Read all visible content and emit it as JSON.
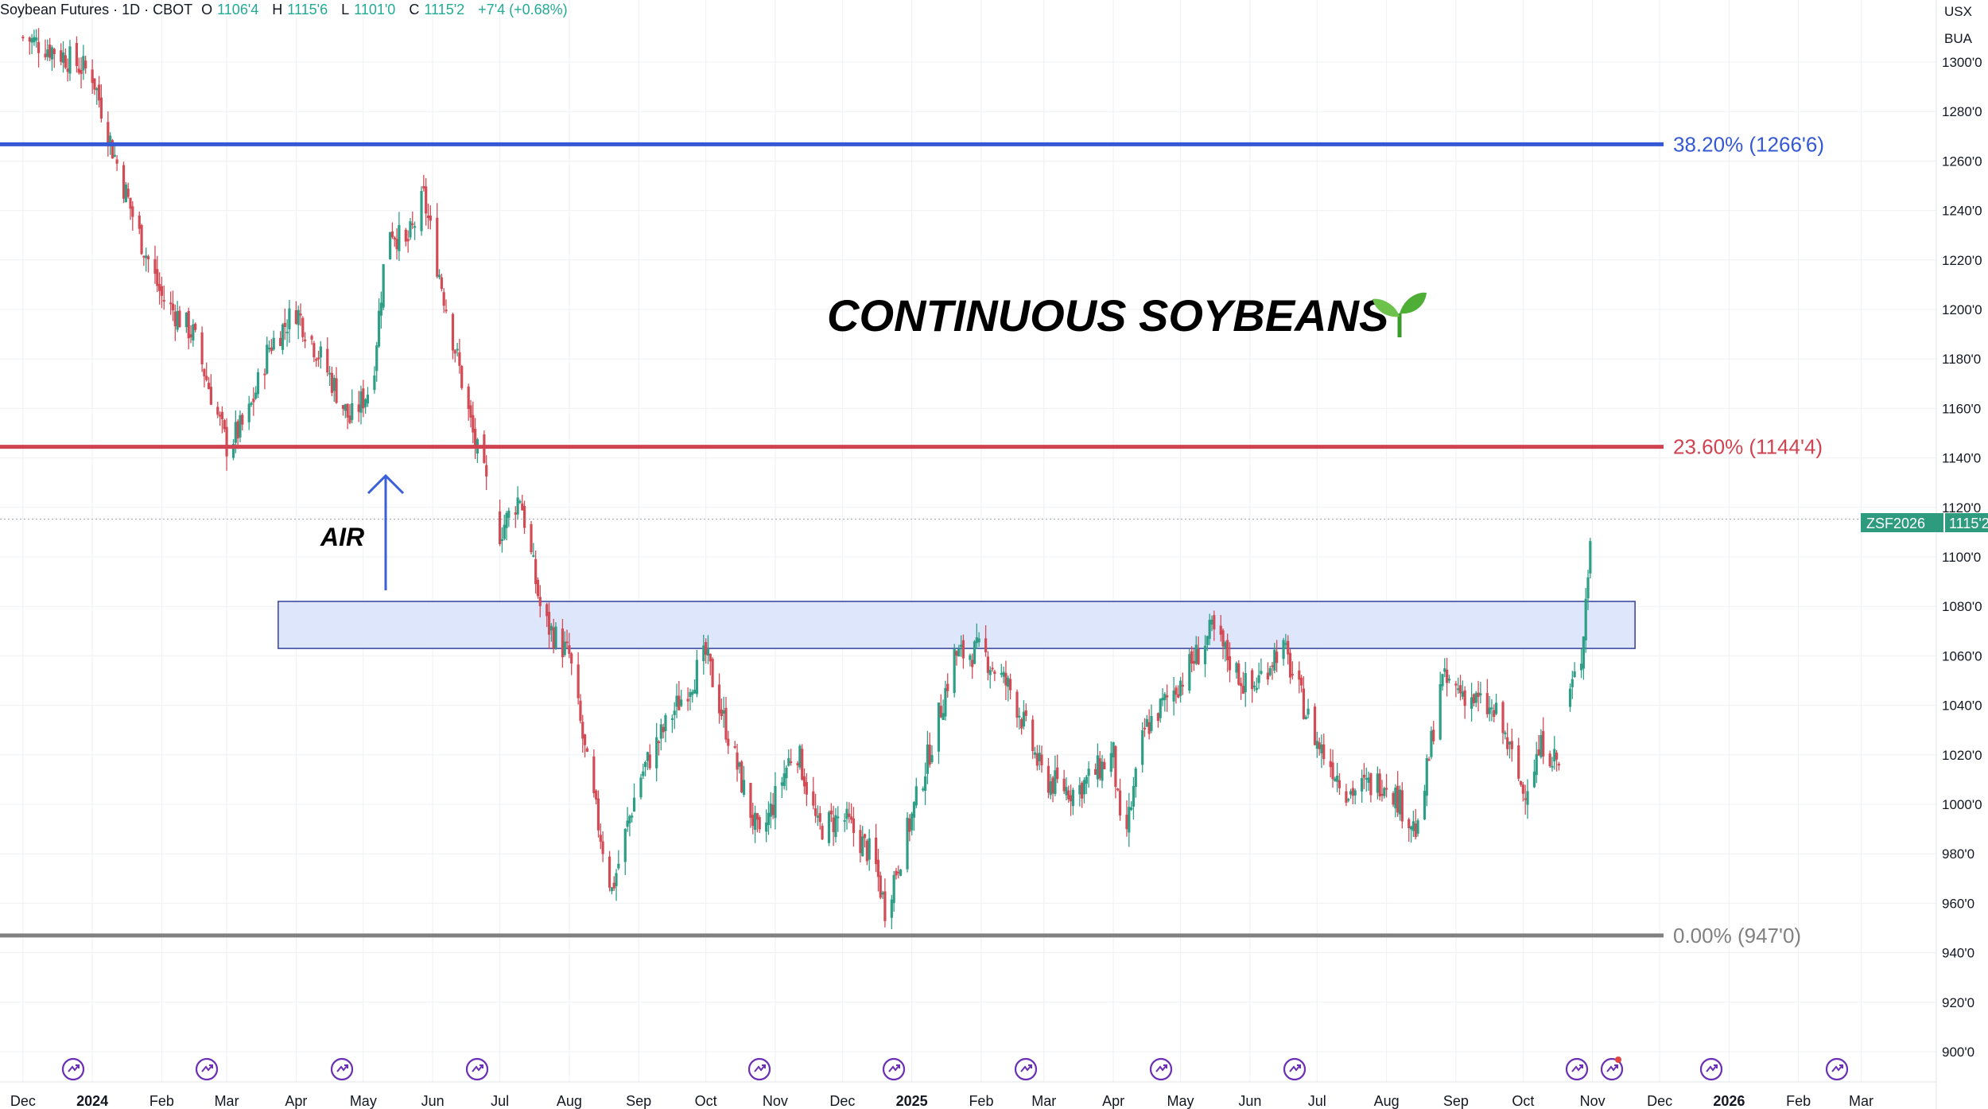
{
  "header": {
    "symbol": "Soybean Futures · 1D · CBOT",
    "open_label": "O",
    "open": "1106'4",
    "high_label": "H",
    "high": "1115'6",
    "low_label": "L",
    "low": "1101'0",
    "close_label": "C",
    "close": "1115'2",
    "change": "+7'4 (+0.68%)"
  },
  "axis_units": {
    "currency": "USX",
    "unit": "BUA"
  },
  "colors": {
    "up": "#2e9f86",
    "down": "#d24b55",
    "fib_382": "#3558d4",
    "fib_236": "#cf4350",
    "fib_0": "#808080",
    "zone_fill": "#dde6fb",
    "zone_stroke": "#34419a",
    "price_tag": "#2e9a7e",
    "icon": "#6a2fb4",
    "title": "#000000",
    "arrow": "#3a5fd8"
  },
  "annotations": {
    "title": "CONTINUOUS SOYBEANS",
    "title_icon": "seedling-icon",
    "air_label": "AIR",
    "price_tag_symbol": "ZSF2026",
    "price_tag_value": "1115'2"
  },
  "chart_data": {
    "type": "candlestick",
    "title": "CONTINUOUS SOYBEANS",
    "y_unit": "USX/BUA",
    "ylim": [
      890,
      1310
    ],
    "y_ticks": [
      {
        "value": 1300,
        "label": "1300'0"
      },
      {
        "value": 1280,
        "label": "1280'0"
      },
      {
        "value": 1260,
        "label": "1260'0"
      },
      {
        "value": 1240,
        "label": "1240'0"
      },
      {
        "value": 1220,
        "label": "1220'0"
      },
      {
        "value": 1200,
        "label": "1200'0"
      },
      {
        "value": 1180,
        "label": "1180'0"
      },
      {
        "value": 1160,
        "label": "1160'0"
      },
      {
        "value": 1140,
        "label": "1140'0"
      },
      {
        "value": 1120,
        "label": "1120'0"
      },
      {
        "value": 1100,
        "label": "1100'0"
      },
      {
        "value": 1080,
        "label": "1080'0"
      },
      {
        "value": 1060,
        "label": "1060'0"
      },
      {
        "value": 1040,
        "label": "1040'0"
      },
      {
        "value": 1020,
        "label": "1020'0"
      },
      {
        "value": 1000,
        "label": "1000'0"
      },
      {
        "value": 980,
        "label": "980'0"
      },
      {
        "value": 960,
        "label": "960'0"
      },
      {
        "value": 940,
        "label": "940'0"
      },
      {
        "value": 920,
        "label": "920'0"
      },
      {
        "value": 900,
        "label": "900'0"
      }
    ],
    "x_ticks": [
      {
        "date": "2023-12-01",
        "label": "Dec",
        "bold": false
      },
      {
        "date": "2024-01-01",
        "label": "2024",
        "bold": true
      },
      {
        "date": "2024-02-01",
        "label": "Feb",
        "bold": false
      },
      {
        "date": "2024-03-01",
        "label": "Mar",
        "bold": false
      },
      {
        "date": "2024-04-01",
        "label": "Apr",
        "bold": false
      },
      {
        "date": "2024-05-01",
        "label": "May",
        "bold": false
      },
      {
        "date": "2024-06-01",
        "label": "Jun",
        "bold": false
      },
      {
        "date": "2024-07-01",
        "label": "Jul",
        "bold": false
      },
      {
        "date": "2024-08-01",
        "label": "Aug",
        "bold": false
      },
      {
        "date": "2024-09-01",
        "label": "Sep",
        "bold": false
      },
      {
        "date": "2024-10-01",
        "label": "Oct",
        "bold": false
      },
      {
        "date": "2024-11-01",
        "label": "Nov",
        "bold": false
      },
      {
        "date": "2024-12-01",
        "label": "Dec",
        "bold": false
      },
      {
        "date": "2025-01-01",
        "label": "2025",
        "bold": true
      },
      {
        "date": "2025-02-01",
        "label": "Feb",
        "bold": false
      },
      {
        "date": "2025-03-01",
        "label": "Mar",
        "bold": false
      },
      {
        "date": "2025-04-01",
        "label": "Apr",
        "bold": false
      },
      {
        "date": "2025-05-01",
        "label": "May",
        "bold": false
      },
      {
        "date": "2025-06-01",
        "label": "Jun",
        "bold": false
      },
      {
        "date": "2025-07-01",
        "label": "Jul",
        "bold": false
      },
      {
        "date": "2025-08-01",
        "label": "Aug",
        "bold": false
      },
      {
        "date": "2025-09-01",
        "label": "Sep",
        "bold": false
      },
      {
        "date": "2025-10-01",
        "label": "Oct",
        "bold": false
      },
      {
        "date": "2025-11-01",
        "label": "Nov",
        "bold": false
      },
      {
        "date": "2025-12-01",
        "label": "Dec",
        "bold": false
      },
      {
        "date": "2026-01-01",
        "label": "2026",
        "bold": true
      },
      {
        "date": "2026-02-01",
        "label": "Feb",
        "bold": false
      },
      {
        "date": "2026-03-01",
        "label": "Mar",
        "bold": false
      }
    ],
    "price_path": [
      {
        "date": "2023-12-01",
        "close": 1310
      },
      {
        "date": "2023-12-15",
        "close": 1305
      },
      {
        "date": "2024-01-01",
        "close": 1295
      },
      {
        "date": "2024-01-10",
        "close": 1265
      },
      {
        "date": "2024-01-20",
        "close": 1235
      },
      {
        "date": "2024-02-01",
        "close": 1205
      },
      {
        "date": "2024-02-15",
        "close": 1190
      },
      {
        "date": "2024-03-01",
        "close": 1145
      },
      {
        "date": "2024-03-10",
        "close": 1155
      },
      {
        "date": "2024-03-20",
        "close": 1185
      },
      {
        "date": "2024-04-01",
        "close": 1200
      },
      {
        "date": "2024-04-15",
        "close": 1175
      },
      {
        "date": "2024-04-25",
        "close": 1155
      },
      {
        "date": "2024-05-05",
        "close": 1170
      },
      {
        "date": "2024-05-12",
        "close": 1235
      },
      {
        "date": "2024-05-20",
        "close": 1225
      },
      {
        "date": "2024-05-28",
        "close": 1245
      },
      {
        "date": "2024-06-05",
        "close": 1210
      },
      {
        "date": "2024-06-12",
        "close": 1180
      },
      {
        "date": "2024-06-20",
        "close": 1145
      },
      {
        "date": "2024-07-01",
        "close": 1110
      },
      {
        "date": "2024-07-10",
        "close": 1125
      },
      {
        "date": "2024-07-20",
        "close": 1075
      },
      {
        "date": "2024-08-01",
        "close": 1060
      },
      {
        "date": "2024-08-10",
        "close": 1010
      },
      {
        "date": "2024-08-20",
        "close": 965
      },
      {
        "date": "2024-09-01",
        "close": 1010
      },
      {
        "date": "2024-09-15",
        "close": 1035
      },
      {
        "date": "2024-10-01",
        "close": 1060
      },
      {
        "date": "2024-10-15",
        "close": 1015
      },
      {
        "date": "2024-10-25",
        "close": 985
      },
      {
        "date": "2024-11-10",
        "close": 1025
      },
      {
        "date": "2024-11-20",
        "close": 990
      },
      {
        "date": "2024-12-01",
        "close": 995
      },
      {
        "date": "2024-12-15",
        "close": 978
      },
      {
        "date": "2024-12-20",
        "close": 958
      },
      {
        "date": "2025-01-01",
        "close": 995
      },
      {
        "date": "2025-01-10",
        "close": 1025
      },
      {
        "date": "2025-01-20",
        "close": 1060
      },
      {
        "date": "2025-02-01",
        "close": 1062
      },
      {
        "date": "2025-02-15",
        "close": 1045
      },
      {
        "date": "2025-03-01",
        "close": 1010
      },
      {
        "date": "2025-03-15",
        "close": 1005
      },
      {
        "date": "2025-04-01",
        "close": 1020
      },
      {
        "date": "2025-04-05",
        "close": 980
      },
      {
        "date": "2025-04-15",
        "close": 1030
      },
      {
        "date": "2025-05-01",
        "close": 1050
      },
      {
        "date": "2025-05-15",
        "close": 1070
      },
      {
        "date": "2025-06-01",
        "close": 1045
      },
      {
        "date": "2025-06-15",
        "close": 1065
      },
      {
        "date": "2025-07-01",
        "close": 1025
      },
      {
        "date": "2025-07-15",
        "close": 1005
      },
      {
        "date": "2025-08-01",
        "close": 1010
      },
      {
        "date": "2025-08-15",
        "close": 988
      },
      {
        "date": "2025-08-25",
        "close": 1050
      },
      {
        "date": "2025-09-05",
        "close": 1045
      },
      {
        "date": "2025-09-20",
        "close": 1035
      },
      {
        "date": "2025-10-01",
        "close": 1005
      },
      {
        "date": "2025-10-10",
        "close": 1025
      },
      {
        "date": "2025-10-18",
        "close": 1015
      },
      {
        "date": "2025-10-22",
        "close": 1045
      },
      {
        "date": "2025-10-27",
        "close": 1060
      },
      {
        "date": "2025-10-30",
        "close": 1095
      },
      {
        "date": "2025-11-01",
        "close": 1115.25
      }
    ],
    "levels": [
      {
        "name": "38.20% (1266'6)",
        "value": 1266.75,
        "color": "#3558d4"
      },
      {
        "name": "23.60% (1144'4)",
        "value": 1144.5,
        "color": "#cf4350"
      },
      {
        "name": "0.00% (947'0)",
        "value": 947,
        "color": "#808080"
      }
    ],
    "resistance_zone": {
      "from": 1063,
      "to": 1082,
      "start": "2024-03-24",
      "end": "2025-11-20"
    },
    "last_price": 1115.25,
    "grid": true
  }
}
